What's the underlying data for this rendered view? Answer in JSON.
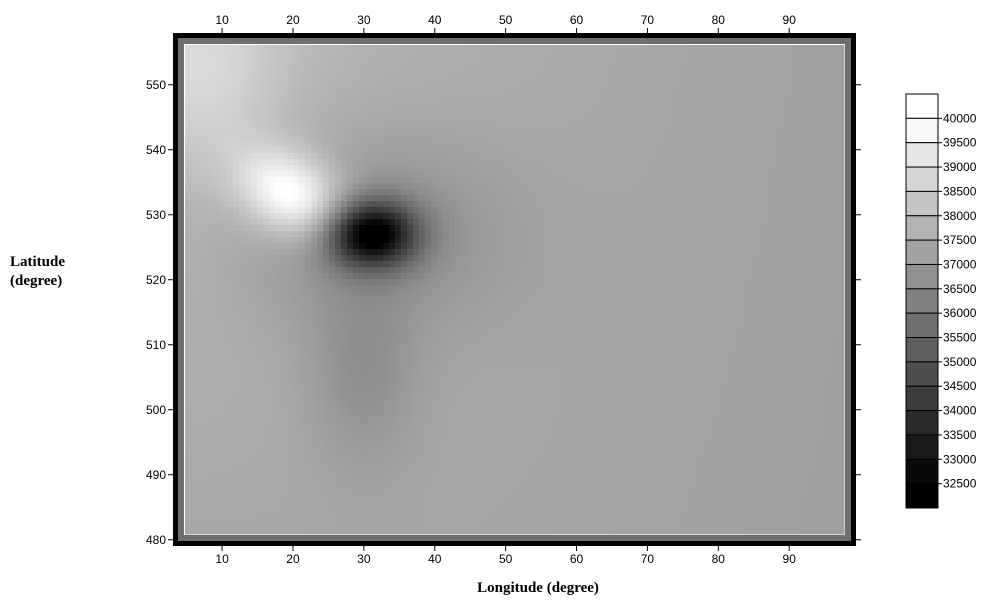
{
  "chart_data": {
    "type": "heatmap",
    "title": "",
    "xlabel": "Longitude (degree)",
    "ylabel_line1": "Latitude",
    "ylabel_line2": "(degree)",
    "xlim": [
      3.5,
      99
    ],
    "ylim": [
      479.5,
      557.5
    ],
    "x_ticks": [
      10,
      20,
      30,
      40,
      50,
      60,
      70,
      80,
      90
    ],
    "y_ticks": [
      480,
      490,
      500,
      510,
      520,
      530,
      540,
      550
    ],
    "x_tick_labels": [
      "10",
      "20",
      "30",
      "40",
      "50",
      "60",
      "70",
      "80",
      "90"
    ],
    "y_tick_labels": [
      "480",
      "490",
      "500",
      "510",
      "520",
      "530",
      "540",
      "550"
    ],
    "ticks_on_top_and_right": true,
    "colormap": "grayscale",
    "legend": {
      "placement": "right",
      "levels": [
        32500,
        33000,
        33500,
        34000,
        34500,
        35000,
        35500,
        36000,
        36500,
        37000,
        37500,
        38000,
        38500,
        39000,
        39500,
        40000
      ],
      "labels": [
        "32500",
        "33000",
        "33500",
        "34000",
        "34500",
        "35000",
        "35500",
        "36000",
        "36500",
        "37000",
        "37500",
        "38000",
        "38500",
        "39000",
        "39500",
        "40000"
      ]
    },
    "field": {
      "background_value": 37400,
      "features": [
        {
          "kind": "high",
          "x": 20,
          "y": 533,
          "amplitude": 2800
        },
        {
          "kind": "low",
          "x": 31,
          "y": 527,
          "amplitude": -4900
        }
      ]
    }
  }
}
